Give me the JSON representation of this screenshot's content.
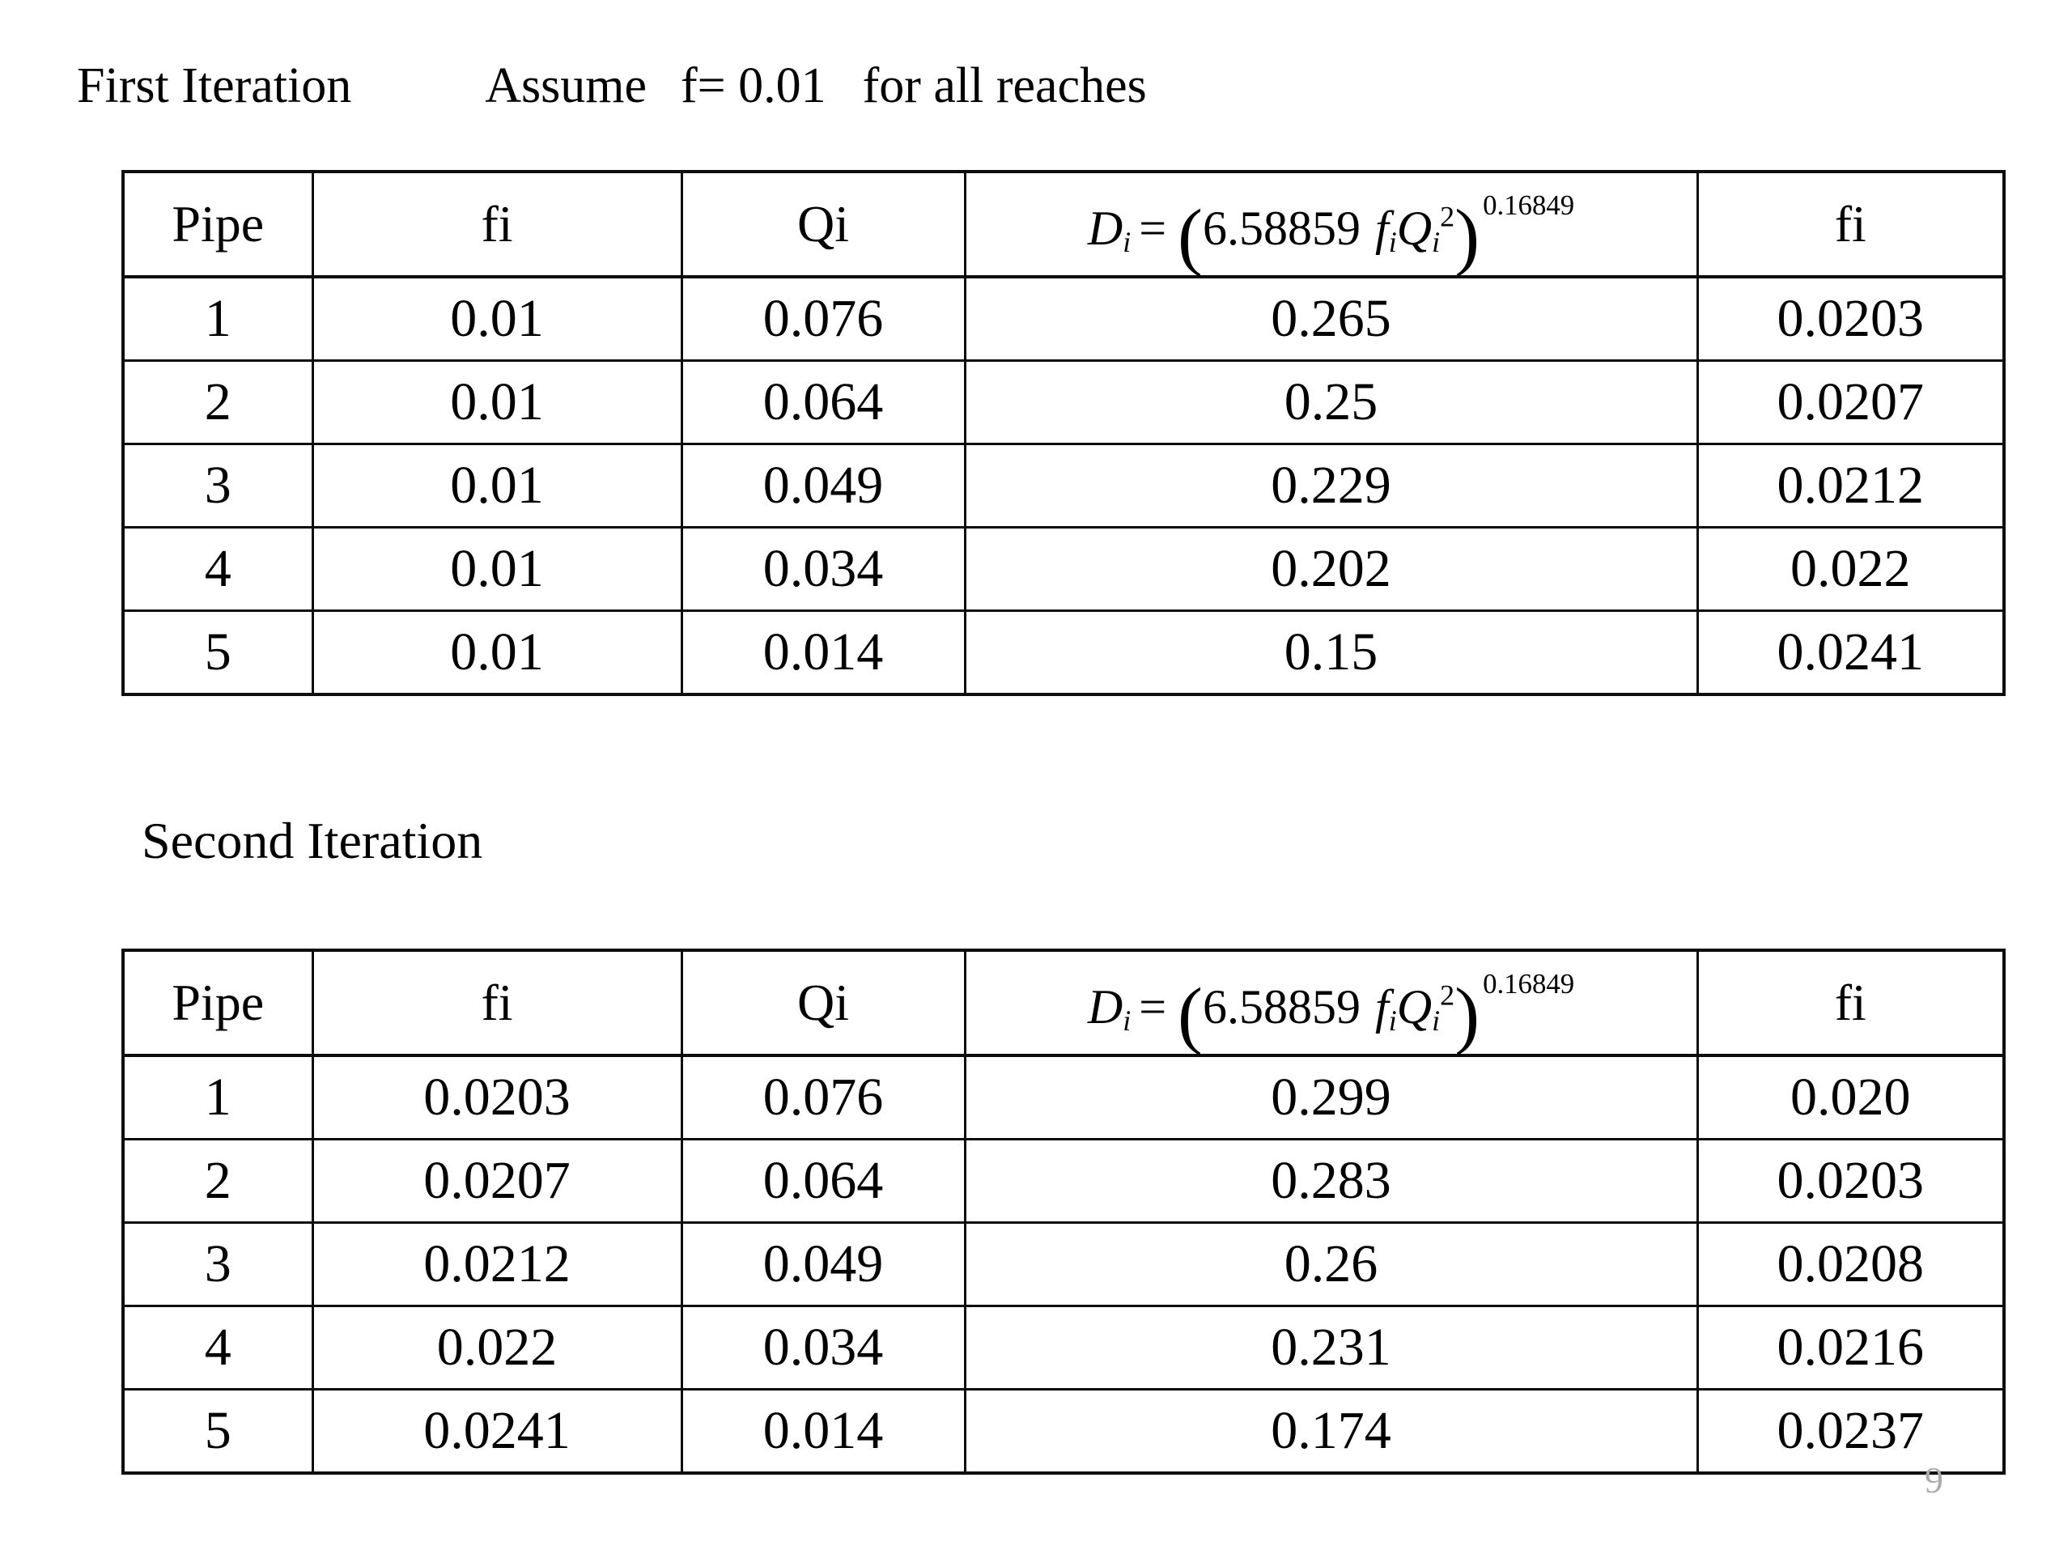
{
  "page": {
    "number": "9"
  },
  "heading_first": {
    "title": "First Iteration",
    "assume": "Assume",
    "assume_value": "f= 0.01",
    "assume_tail": "for all reaches"
  },
  "heading_second": {
    "title": "Second Iteration"
  },
  "columns": {
    "pipe": "Pipe",
    "fi": "fi",
    "qi": "Qi",
    "fi_new": "fi"
  },
  "formula": {
    "lhs": "D",
    "lhs_sub": "i",
    "eq": "=",
    "open": "(",
    "coef": "6.58859",
    "f": "f",
    "f_sub": "i",
    "q": "Q",
    "q_sub": "i",
    "q_exp": "2",
    "close": ")",
    "exp": "0.16849"
  },
  "tables": [
    {
      "name": "first-iteration-table",
      "rows": [
        [
          "1",
          "0.01",
          "0.076",
          "0.265",
          "0.0203"
        ],
        [
          "2",
          "0.01",
          "0.064",
          "0.25",
          "0.0207"
        ],
        [
          "3",
          "0.01",
          "0.049",
          "0.229",
          "0.0212"
        ],
        [
          "4",
          "0.01",
          "0.034",
          "0.202",
          "0.022"
        ],
        [
          "5",
          "0.01",
          "0.014",
          "0.15",
          "0.0241"
        ]
      ]
    },
    {
      "name": "second-iteration-table",
      "rows": [
        [
          "1",
          "0.0203",
          "0.076",
          "0.299",
          "0.020"
        ],
        [
          "2",
          "0.0207",
          "0.064",
          "0.283",
          "0.0203"
        ],
        [
          "3",
          "0.0212",
          "0.049",
          "0.26",
          "0.0208"
        ],
        [
          "4",
          "0.022",
          "0.034",
          "0.231",
          "0.0216"
        ],
        [
          "5",
          "0.0241",
          "0.014",
          "0.174",
          "0.0237"
        ]
      ]
    }
  ]
}
